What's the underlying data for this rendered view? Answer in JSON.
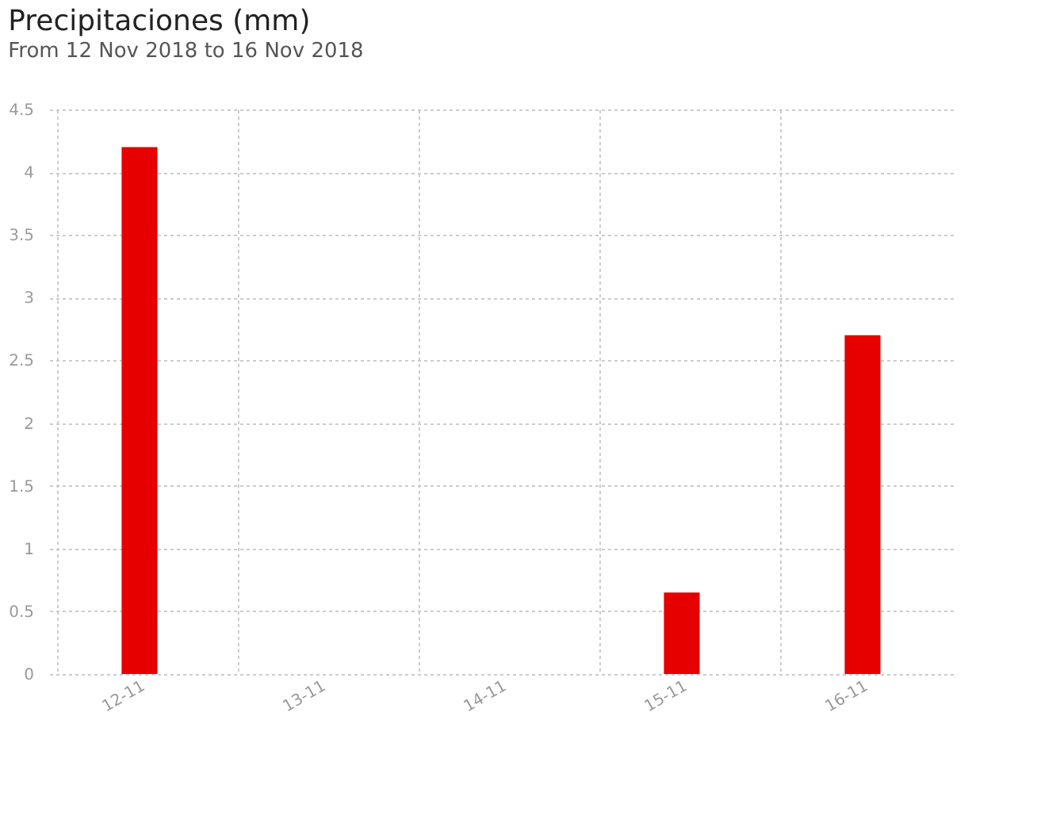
{
  "chart_data": {
    "type": "bar",
    "title": "Precipitaciones (mm)",
    "subtitle": "From 12 Nov 2018 to 16 Nov 2018",
    "categories": [
      "12-11",
      "13-11",
      "14-11",
      "15-11",
      "16-11"
    ],
    "values": [
      4.2,
      0,
      0,
      0.65,
      2.7
    ],
    "color": "#e60000",
    "ylim": [
      0,
      4.5
    ],
    "yticks": [
      0,
      0.5,
      1,
      1.5,
      2,
      2.5,
      3,
      3.5,
      4,
      4.5
    ],
    "grid": true
  }
}
